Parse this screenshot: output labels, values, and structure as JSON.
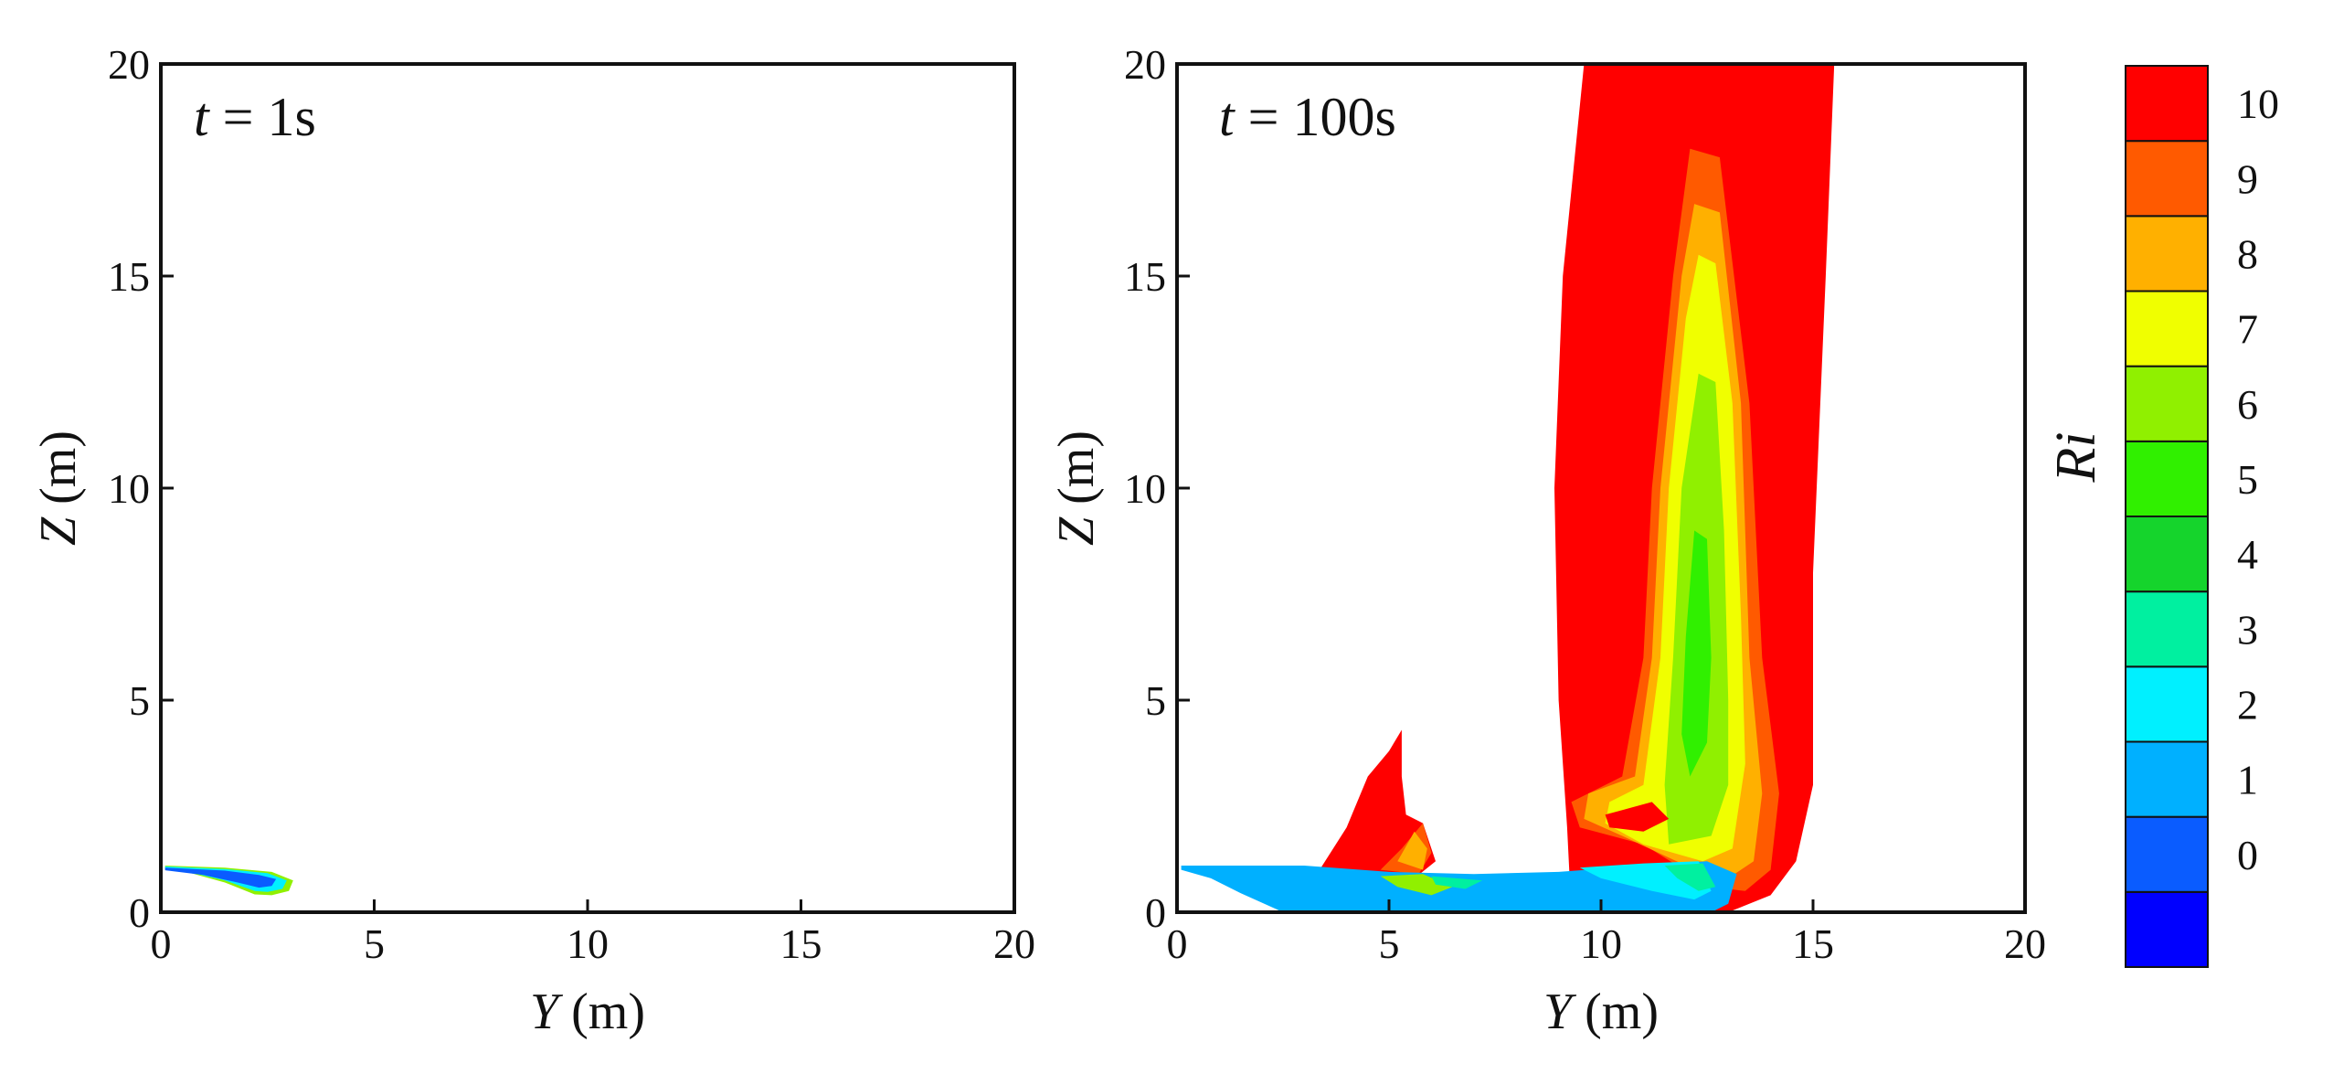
{
  "chart_data": [
    {
      "type": "contour",
      "panel_label": {
        "symbol": "t",
        "eq": " = 1s"
      },
      "xlabel": {
        "symbol": "Y",
        "unit": " (m)"
      },
      "ylabel": {
        "symbol": "Z",
        "unit": " (m)"
      },
      "xlim": [
        0,
        20
      ],
      "ylim": [
        0,
        20
      ],
      "xticks": [
        0,
        5,
        10,
        15,
        20
      ],
      "yticks": [
        0,
        5,
        10,
        15,
        20
      ],
      "regions": [
        {
          "level": 6,
          "pts": [
            [
              0.1,
              1.1
            ],
            [
              1.5,
              1.05
            ],
            [
              2.6,
              0.95
            ],
            [
              3.1,
              0.75
            ],
            [
              3.0,
              0.5
            ],
            [
              2.6,
              0.4
            ],
            [
              2.2,
              0.42
            ],
            [
              1.5,
              0.7
            ],
            [
              0.6,
              0.95
            ],
            [
              0.1,
              1.0
            ]
          ]
        },
        {
          "level": 2,
          "pts": [
            [
              0.1,
              1.08
            ],
            [
              1.5,
              1.02
            ],
            [
              2.5,
              0.92
            ],
            [
              2.95,
              0.75
            ],
            [
              2.85,
              0.55
            ],
            [
              2.5,
              0.48
            ],
            [
              2.2,
              0.5
            ],
            [
              1.5,
              0.75
            ],
            [
              0.6,
              0.96
            ],
            [
              0.1,
              1.02
            ]
          ]
        },
        {
          "level": 0,
          "pts": [
            [
              0.1,
              1.05
            ],
            [
              1.5,
              0.98
            ],
            [
              2.3,
              0.88
            ],
            [
              2.7,
              0.78
            ],
            [
              2.6,
              0.62
            ],
            [
              2.3,
              0.58
            ],
            [
              1.8,
              0.7
            ],
            [
              1.0,
              0.88
            ],
            [
              0.1,
              0.99
            ]
          ]
        }
      ]
    },
    {
      "type": "contour",
      "panel_label": {
        "symbol": "t",
        "eq": " = 100s"
      },
      "xlabel": {
        "symbol": "Y",
        "unit": " (m)"
      },
      "ylabel": {
        "symbol": "Z",
        "unit": " (m)"
      },
      "xlim": [
        0,
        20
      ],
      "ylim": [
        0,
        20
      ],
      "xticks": [
        0,
        5,
        10,
        15,
        20
      ],
      "yticks": [
        0,
        5,
        10,
        15,
        20
      ],
      "regions": [
        {
          "level": 10,
          "pts": [
            [
              9.6,
              20
            ],
            [
              15.5,
              20
            ],
            [
              15.3,
              15
            ],
            [
              15.0,
              8
            ],
            [
              15.0,
              3
            ],
            [
              14.6,
              1.2
            ],
            [
              14.0,
              0.4
            ],
            [
              13.0,
              0
            ],
            [
              9.3,
              0
            ],
            [
              9.2,
              2.0
            ],
            [
              9.0,
              5
            ],
            [
              8.9,
              10
            ],
            [
              9.1,
              15
            ],
            [
              9.6,
              20
            ]
          ]
        },
        {
          "level": 10,
          "pts": [
            [
              3.3,
              0.9
            ],
            [
              4.0,
              2.0
            ],
            [
              4.5,
              3.2
            ],
            [
              5.0,
              3.8
            ],
            [
              5.3,
              4.3
            ],
            [
              5.3,
              3.2
            ],
            [
              5.4,
              2.3
            ],
            [
              5.8,
              2.1
            ],
            [
              6.1,
              1.2
            ],
            [
              5.6,
              0.8
            ],
            [
              4.0,
              0.8
            ]
          ]
        },
        {
          "level": 9,
          "pts": [
            [
              12.1,
              18.0
            ],
            [
              12.8,
              17.8
            ],
            [
              13.5,
              12
            ],
            [
              13.8,
              6
            ],
            [
              14.2,
              2.8
            ],
            [
              14.0,
              1.0
            ],
            [
              13.4,
              0.5
            ],
            [
              12.6,
              0.6
            ],
            [
              11.0,
              1.6
            ],
            [
              9.5,
              2.0
            ],
            [
              9.3,
              2.6
            ],
            [
              10.5,
              3.2
            ],
            [
              11.0,
              6
            ],
            [
              11.2,
              10
            ],
            [
              11.7,
              15
            ]
          ]
        },
        {
          "level": 9,
          "pts": [
            [
              4.8,
              1.0
            ],
            [
              5.3,
              1.5
            ],
            [
              5.8,
              2.1
            ],
            [
              6.0,
              1.4
            ],
            [
              5.7,
              0.9
            ]
          ]
        },
        {
          "level": 8,
          "pts": [
            [
              12.2,
              16.7
            ],
            [
              12.8,
              16.5
            ],
            [
              13.3,
              12
            ],
            [
              13.5,
              6
            ],
            [
              13.8,
              2.8
            ],
            [
              13.6,
              1.2
            ],
            [
              13.0,
              0.8
            ],
            [
              12.0,
              1.1
            ],
            [
              10.5,
              1.8
            ],
            [
              9.6,
              2.2
            ],
            [
              9.7,
              2.8
            ],
            [
              10.8,
              3.2
            ],
            [
              11.2,
              6
            ],
            [
              11.4,
              10
            ],
            [
              11.9,
              15
            ]
          ]
        },
        {
          "level": 8,
          "pts": [
            [
              5.2,
              1.2
            ],
            [
              5.6,
              1.9
            ],
            [
              5.9,
              1.5
            ],
            [
              5.8,
              1.0
            ]
          ]
        },
        {
          "level": 7,
          "pts": [
            [
              12.3,
              15.5
            ],
            [
              12.7,
              15.3
            ],
            [
              13.1,
              12
            ],
            [
              13.3,
              7
            ],
            [
              13.4,
              3.5
            ],
            [
              13.1,
              1.5
            ],
            [
              12.4,
              1.2
            ],
            [
              11.0,
              1.6
            ],
            [
              10.1,
              2.1
            ],
            [
              10.2,
              2.6
            ],
            [
              11.0,
              3.0
            ],
            [
              11.4,
              6
            ],
            [
              11.6,
              10
            ],
            [
              12.0,
              14
            ]
          ]
        },
        {
          "level": 6,
          "pts": [
            [
              12.3,
              12.7
            ],
            [
              12.7,
              12.5
            ],
            [
              12.9,
              9
            ],
            [
              13.0,
              5
            ],
            [
              13.0,
              3.0
            ],
            [
              12.6,
              1.8
            ],
            [
              11.6,
              1.6
            ],
            [
              11.5,
              3.0
            ],
            [
              11.7,
              6
            ],
            [
              11.9,
              10
            ]
          ]
        },
        {
          "level": 5,
          "pts": [
            [
              12.2,
              9.0
            ],
            [
              12.5,
              8.8
            ],
            [
              12.6,
              6
            ],
            [
              12.5,
              4.0
            ],
            [
              12.1,
              3.2
            ],
            [
              11.9,
              4.2
            ],
            [
              12.0,
              6.5
            ]
          ]
        },
        {
          "level": 10,
          "pts": [
            [
              10.1,
              2.3
            ],
            [
              11.2,
              2.6
            ],
            [
              11.6,
              2.2
            ],
            [
              11.0,
              1.9
            ],
            [
              10.2,
              2.0
            ]
          ]
        },
        {
          "level": 1,
          "pts": [
            [
              0.1,
              1.1
            ],
            [
              3.0,
              1.1
            ],
            [
              5.0,
              0.95
            ],
            [
              7.0,
              0.9
            ],
            [
              9.0,
              0.95
            ],
            [
              11.0,
              1.1
            ],
            [
              12.5,
              1.2
            ],
            [
              13.2,
              0.9
            ],
            [
              13.0,
              0.2
            ],
            [
              12.6,
              0
            ],
            [
              2.5,
              0
            ],
            [
              1.5,
              0.45
            ],
            [
              0.8,
              0.8
            ],
            [
              0.1,
              1.0
            ]
          ]
        },
        {
          "level": 2,
          "pts": [
            [
              9.5,
              1.05
            ],
            [
              11.0,
              1.15
            ],
            [
              12.3,
              1.2
            ],
            [
              12.6,
              0.5
            ],
            [
              12.2,
              0.3
            ],
            [
              11.2,
              0.5
            ],
            [
              10.0,
              0.8
            ]
          ]
        },
        {
          "level": 3,
          "pts": [
            [
              11.5,
              1.1
            ],
            [
              12.4,
              1.15
            ],
            [
              12.7,
              0.6
            ],
            [
              12.3,
              0.5
            ],
            [
              11.8,
              0.8
            ]
          ]
        },
        {
          "level": 6,
          "pts": [
            [
              4.8,
              0.85
            ],
            [
              5.8,
              0.9
            ],
            [
              6.5,
              0.6
            ],
            [
              6.0,
              0.4
            ],
            [
              5.2,
              0.6
            ]
          ]
        },
        {
          "level": 3,
          "pts": [
            [
              6.0,
              0.85
            ],
            [
              7.2,
              0.75
            ],
            [
              6.8,
              0.55
            ],
            [
              6.1,
              0.65
            ]
          ]
        }
      ]
    }
  ],
  "colorbar": {
    "title": "Ri",
    "labels": [
      "10",
      "9",
      "8",
      "7",
      "6",
      "5",
      "4",
      "3",
      "2",
      "1",
      "0"
    ],
    "colors": [
      "#0000ff",
      "#0a5cff",
      "#00b0ff",
      "#00f0ff",
      "#00f0a0",
      "#15d42c",
      "#30f000",
      "#90f000",
      "#f0ff00",
      "#ffb000",
      "#ff5a00",
      "#ff0000"
    ]
  }
}
